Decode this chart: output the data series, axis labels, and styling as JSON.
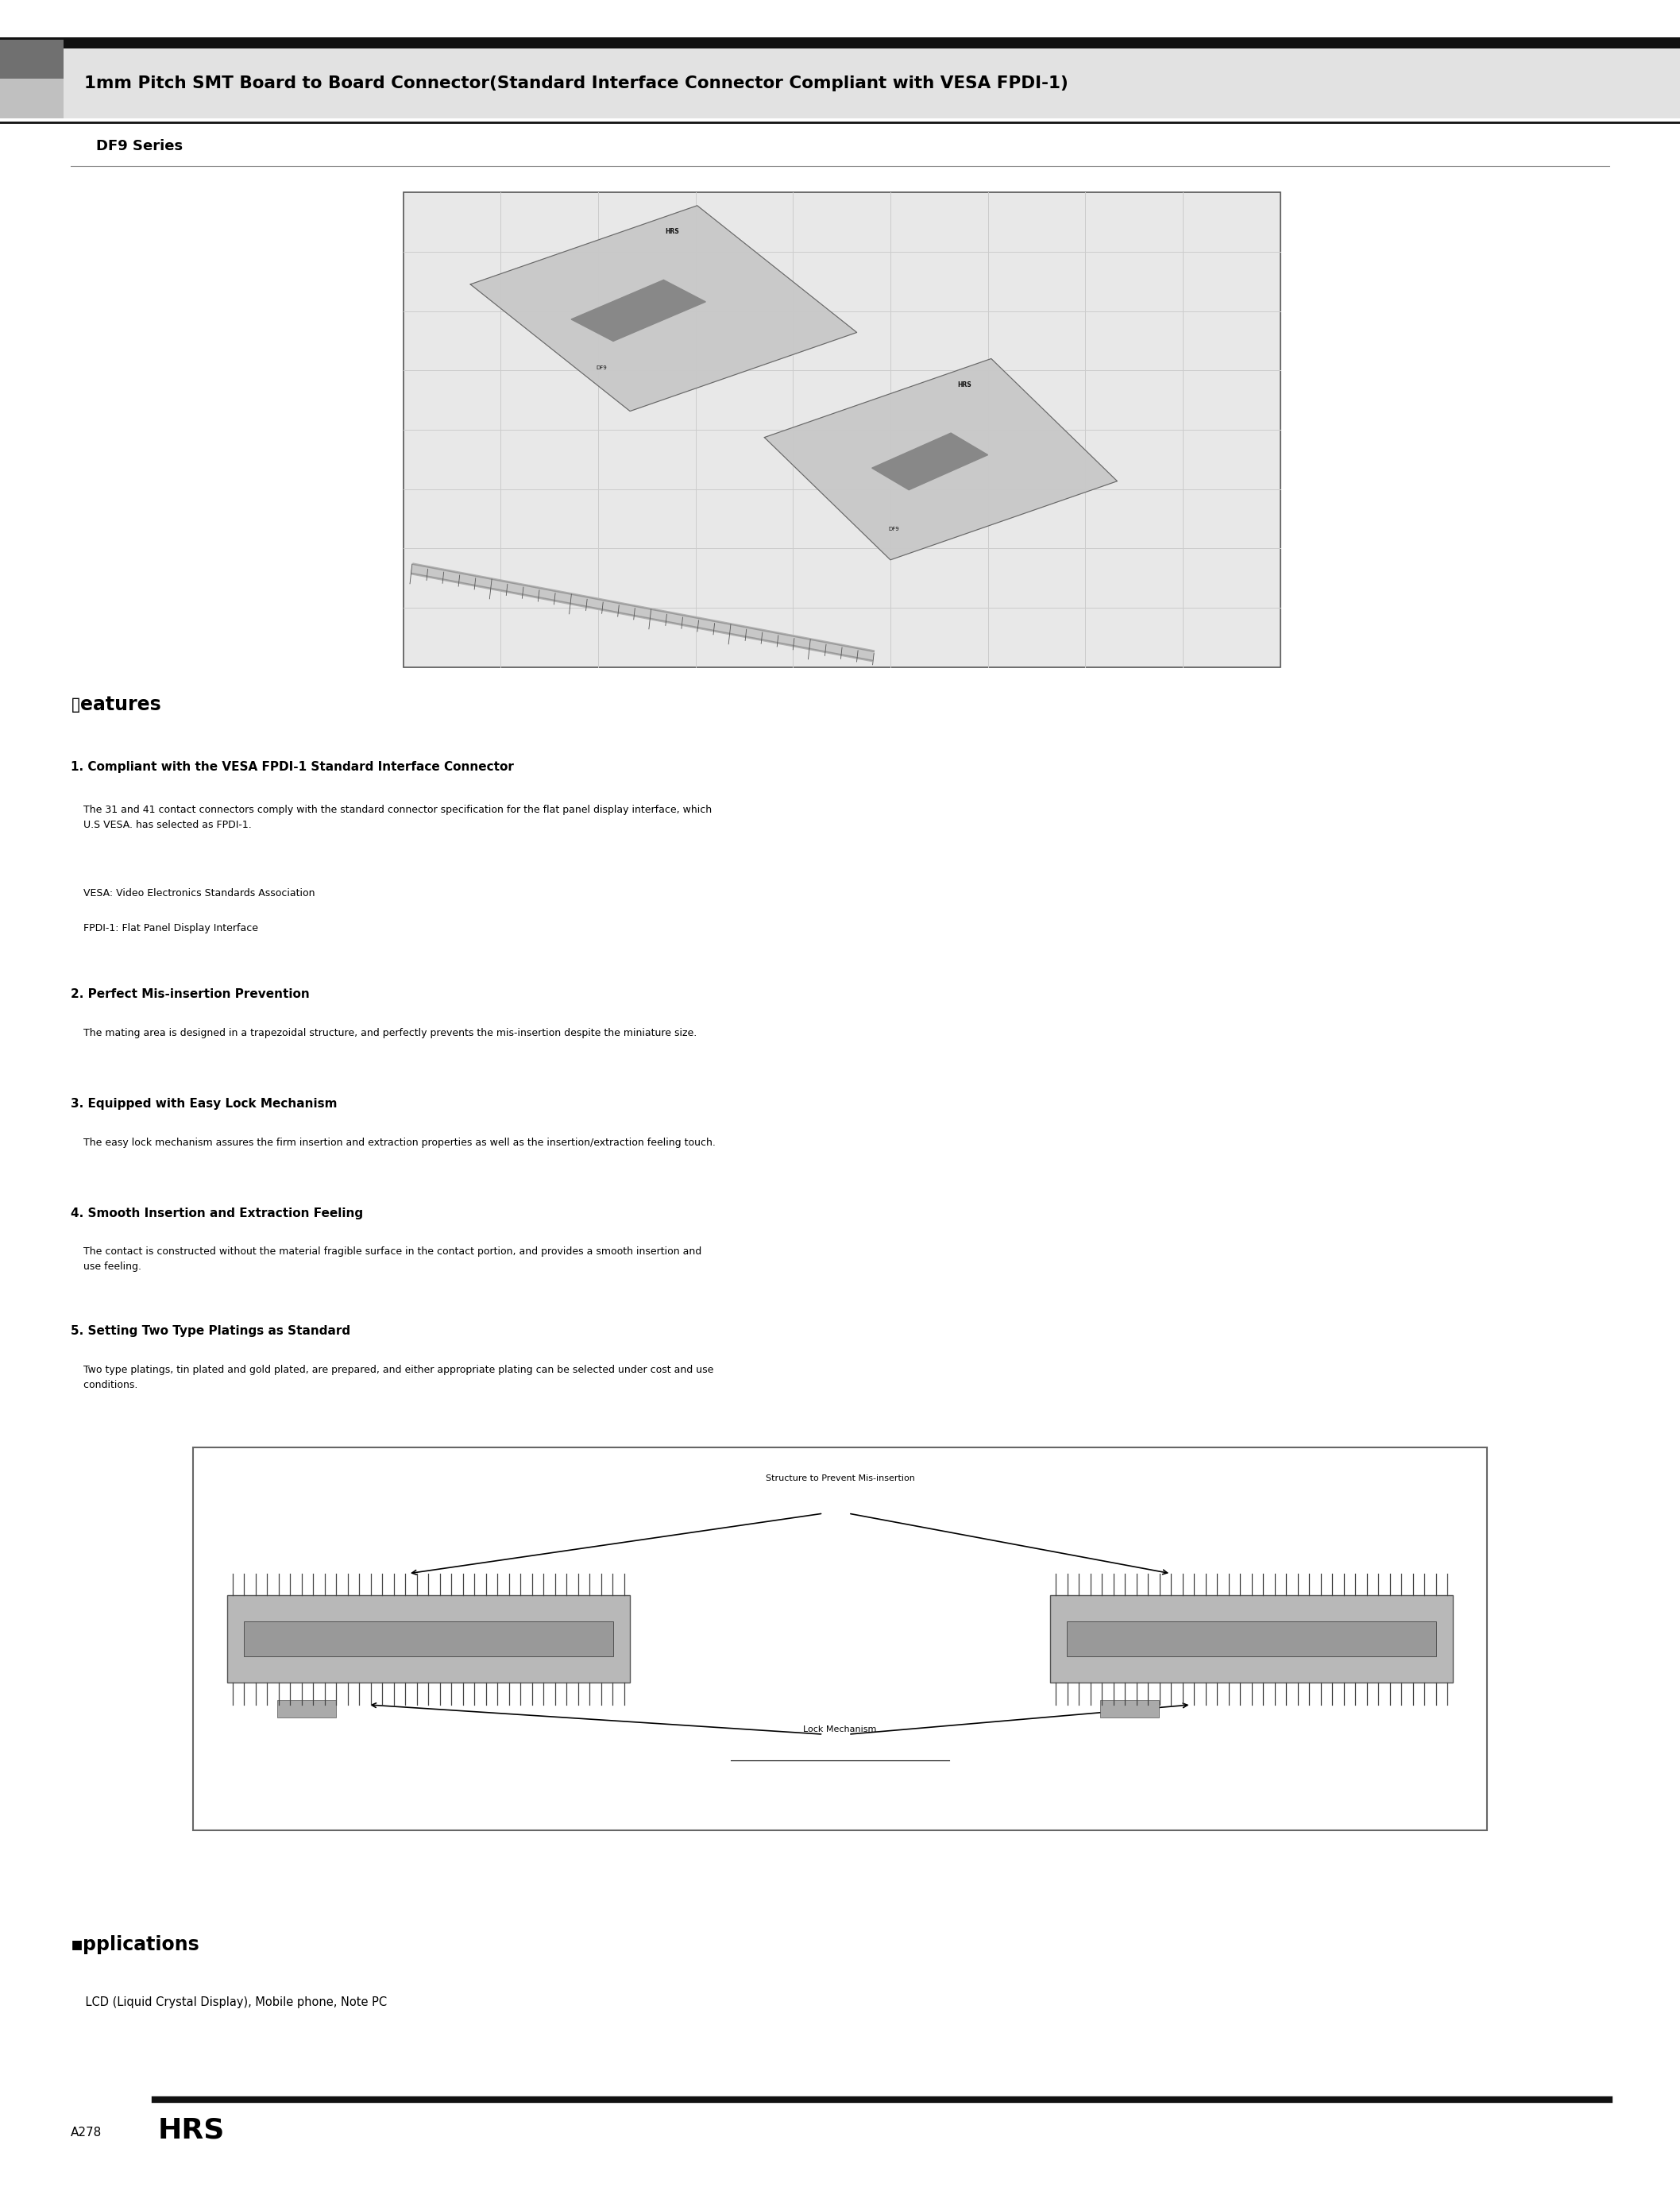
{
  "page_width": 21.15,
  "page_height": 27.53,
  "background_color": "#ffffff",
  "title_text": "1mm Pitch SMT Board to Board Connector(Standard Interface Connector Compliant with VESA FPDI-1)",
  "series_text": "DF9 Series",
  "features_title": "▯eatures",
  "feature1_title": "1. Compliant with the VESA FPDI-1 Standard Interface Connector",
  "feature1_body": "    The 31 and 41 contact connectors comply with the standard connector specification for the flat panel display interface, which\n    U.S VESA. has selected as FPDI-1.",
  "feature1_note1": "    VESA: Video Electronics Standards Association",
  "feature1_note2": "    FPDI-1: Flat Panel Display Interface",
  "feature2_title": "2. Perfect Mis-insertion Prevention",
  "feature2_body": "    The mating area is designed in a trapezoidal structure, and perfectly prevents the mis-insertion despite the miniature size.",
  "feature3_title": "3. Equipped with Easy Lock Mechanism",
  "feature3_body": "    The easy lock mechanism assures the firm insertion and extraction properties as well as the insertion/extraction feeling touch.",
  "feature4_title": "4. Smooth Insertion and Extraction Feeling",
  "feature4_body": "    The contact is constructed without the material fragible surface in the contact portion, and provides a smooth insertion and\n    use feeling.",
  "feature5_title": "5. Setting Two Type Platings as Standard",
  "feature5_body": "    Two type platings, tin plated and gold plated, are prepared, and either appropriate plating can be selected under cost and use\n    conditions.",
  "applications_title": "▪pplications",
  "applications_body": "    LCD (Liquid Crystal Display), Mobile phone, Note PC",
  "footer_page": "A278",
  "footer_logo": "HRS",
  "diagram_label1": "Structure to Prevent Mis-insertion",
  "diagram_label2": "Lock Mechanism",
  "title_font_size": 15.5,
  "series_font_size": 13,
  "feature_title_font_size": 11,
  "body_font_size": 9,
  "section_title_font_size": 17,
  "footer_font_size": 11
}
